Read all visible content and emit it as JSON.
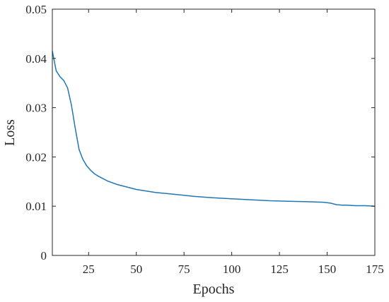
{
  "chart_data": {
    "type": "line",
    "xlabel": "Epochs",
    "ylabel": "Loss",
    "xlim": [
      6,
      175
    ],
    "ylim": [
      0,
      0.05
    ],
    "x_ticks": [
      25,
      50,
      75,
      100,
      125,
      150,
      175
    ],
    "y_ticks": [
      0,
      0.01,
      0.02,
      0.03,
      0.04,
      0.05
    ],
    "x_tick_labels": [
      "25",
      "50",
      "75",
      "100",
      "125",
      "150",
      "175"
    ],
    "y_tick_labels": [
      "0",
      "0.01",
      "0.02",
      "0.03",
      "0.04",
      "0.05"
    ],
    "grid": false,
    "line_color": "#1f77b4",
    "series": [
      {
        "x": [
          6,
          8,
          10,
          12,
          14,
          16,
          18,
          20,
          22,
          24,
          26,
          28,
          30,
          35,
          40,
          45,
          50,
          60,
          70,
          80,
          90,
          100,
          110,
          120,
          130,
          140,
          148,
          150,
          152,
          155,
          158,
          160,
          165,
          170,
          175
        ],
        "values": [
          0.0415,
          0.0375,
          0.0363,
          0.0355,
          0.034,
          0.0305,
          0.0258,
          0.0215,
          0.0195,
          0.0182,
          0.0173,
          0.0166,
          0.0161,
          0.0151,
          0.0144,
          0.0139,
          0.0134,
          0.0128,
          0.0124,
          0.012,
          0.0117,
          0.0115,
          0.0113,
          0.0111,
          0.011,
          0.0109,
          0.0108,
          0.0107,
          0.0106,
          0.0103,
          0.0102,
          0.0102,
          0.0101,
          0.0101,
          0.01
        ]
      }
    ]
  }
}
